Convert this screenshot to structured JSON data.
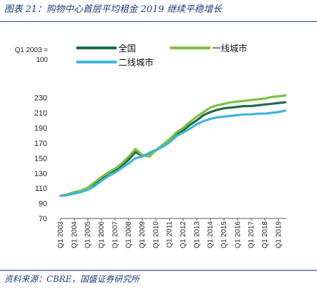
{
  "caption": "图表 21：购物中心首层平均租金 2019 继续平稳增长",
  "source": "资料来源：CBRE，国盛证券研究所",
  "chart_data": {
    "type": "line",
    "ylabel": "Q1 2003 =\n100",
    "ylim": [
      70,
      240
    ],
    "yticks": [
      70,
      90,
      110,
      130,
      150,
      170,
      190,
      210,
      230
    ],
    "x": [
      "Q1 2003",
      "Q3 2003",
      "Q1 2004",
      "Q3 2004",
      "Q1 2005",
      "Q3 2005",
      "Q1 2006",
      "Q3 2006",
      "Q1 2007",
      "Q3 2007",
      "Q1 2008",
      "Q3 2008",
      "Q1 2009",
      "Q3 2009",
      "Q1 2010",
      "Q3 2010",
      "Q1 2011",
      "Q3 2011",
      "Q1 2012",
      "Q3 2012",
      "Q1 2013",
      "Q3 2013",
      "Q1 2014",
      "Q3 2014",
      "Q1 2015",
      "Q3 2015",
      "Q1 2016",
      "Q3 2016",
      "Q1 2017",
      "Q3 2017",
      "Q1 2018",
      "Q3 2018",
      "Q1 2019",
      "Q3 2019"
    ],
    "xtick_labels": [
      "Q1 2003",
      "Q1 2004",
      "Q1 2005",
      "Q1 2006",
      "Q1 2007",
      "Q1 2008",
      "Q1 2009",
      "Q1 2010",
      "Q1 2011",
      "Q1 2012",
      "Q1 2013",
      "Q1 2014",
      "Q1 2015",
      "Q1 2016",
      "Q1 2017",
      "Q1 2018",
      "Q1 2019"
    ],
    "legend_position": "top",
    "series": [
      {
        "name": "全国",
        "color": "#1f6b4a",
        "values": [
          100,
          101,
          104,
          106,
          110,
          116,
          123,
          130,
          134,
          140,
          148,
          158,
          153,
          156,
          160,
          166,
          173,
          182,
          187,
          194,
          200,
          207,
          211,
          214,
          216,
          217,
          218,
          219,
          219,
          220,
          221,
          222,
          223,
          224
        ]
      },
      {
        "name": "一线城市",
        "color": "#7dc242",
        "values": [
          100,
          102,
          105,
          107,
          111,
          118,
          125,
          131,
          136,
          143,
          152,
          162,
          154,
          152,
          160,
          168,
          175,
          184,
          190,
          198,
          205,
          211,
          217,
          220,
          222,
          224,
          225,
          226,
          227,
          228,
          229,
          231,
          232,
          233
        ]
      },
      {
        "name": "二线城市",
        "color": "#3fb4de",
        "values": [
          100,
          101,
          103,
          105,
          108,
          113,
          120,
          126,
          131,
          137,
          143,
          150,
          152,
          157,
          161,
          165,
          171,
          179,
          184,
          189,
          195,
          199,
          202,
          204,
          205,
          206,
          207,
          208,
          208,
          209,
          209,
          210,
          211,
          213
        ]
      }
    ]
  }
}
